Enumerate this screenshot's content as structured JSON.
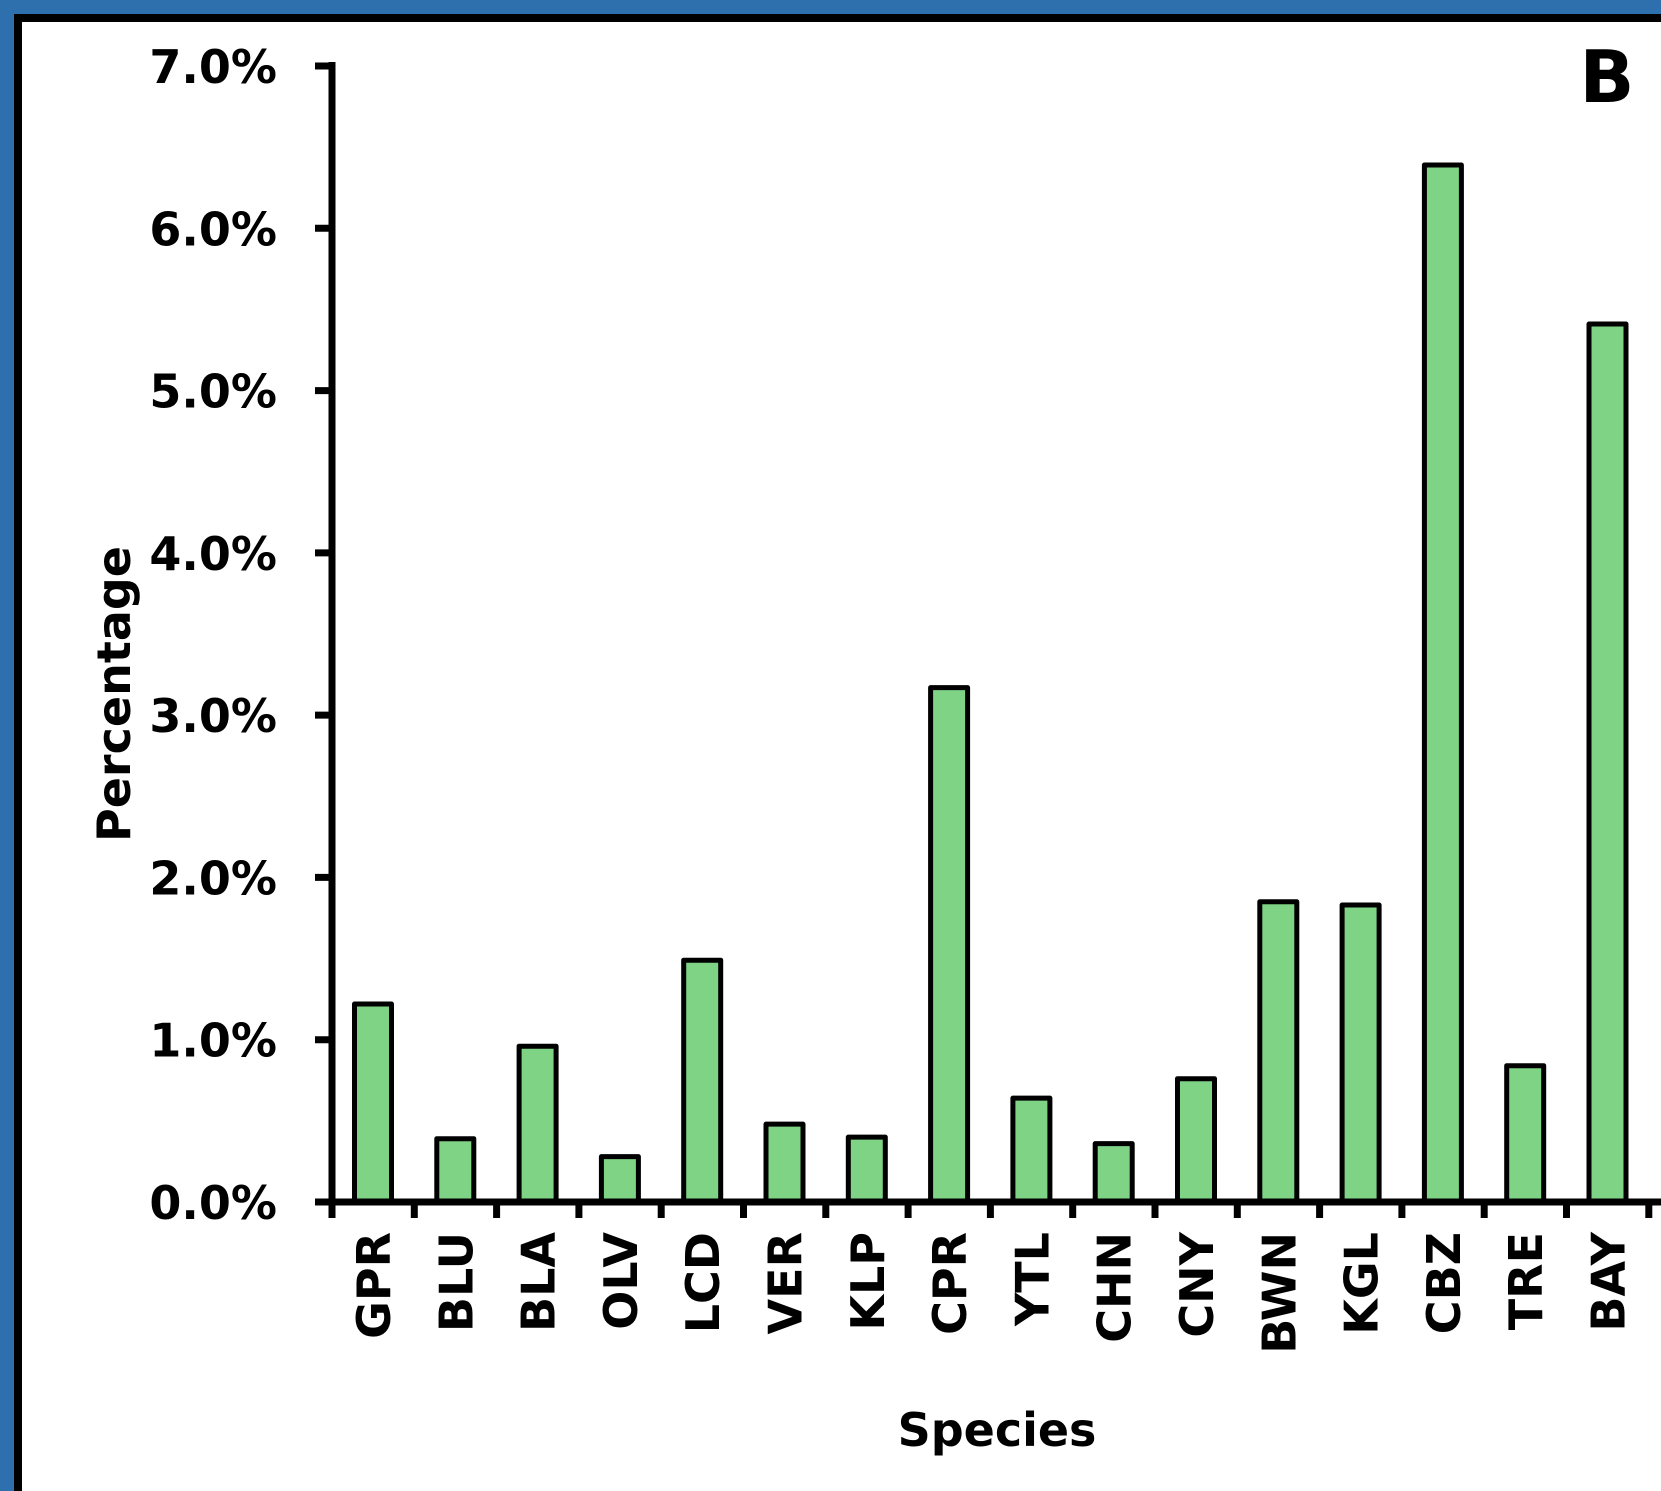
{
  "chart_data": {
    "type": "bar",
    "panel_label": "B",
    "title": "",
    "xlabel": "Species",
    "ylabel": "Percentage",
    "ylim": [
      0,
      7
    ],
    "yticks": [
      "0.0%",
      "1.0%",
      "2.0%",
      "3.0%",
      "4.0%",
      "5.0%",
      "6.0%",
      "7.0%"
    ],
    "grid": false,
    "legend": "none",
    "categories": [
      "GPR",
      "BLU",
      "BLA",
      "OLV",
      "LCD",
      "VER",
      "KLP",
      "CPR",
      "YTL",
      "CHN",
      "CNY",
      "BWN",
      "KGL",
      "CBZ",
      "TRE",
      "BAY"
    ],
    "values": [
      1.22,
      0.39,
      0.96,
      0.28,
      1.49,
      0.48,
      0.4,
      3.17,
      0.64,
      0.36,
      0.76,
      1.85,
      1.83,
      6.39,
      0.84,
      5.41
    ],
    "bar_color": "#7ed384",
    "edge_color": "#000000"
  }
}
